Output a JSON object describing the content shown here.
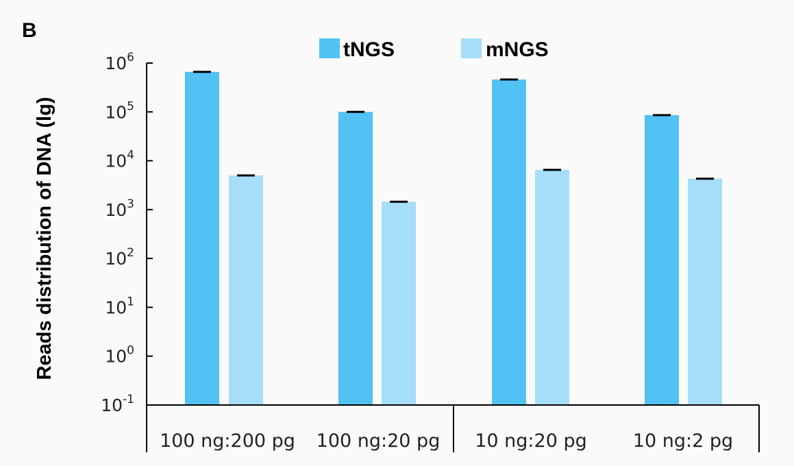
{
  "panel_label": "B",
  "colors": {
    "tNGS": "#52c2f5",
    "mNGS": "#a6ddf8",
    "axis": "#000000",
    "background": "#fafafa"
  },
  "chart_data": {
    "type": "bar",
    "scale": "log10",
    "ylabel": "Reads distribution of DNA (lg)",
    "xlabel": "",
    "ylim": [
      0.1,
      1000000
    ],
    "y_ticks": [
      {
        "base": "10",
        "exp": "6",
        "value": 1000000
      },
      {
        "base": "10",
        "exp": "5",
        "value": 100000
      },
      {
        "base": "10",
        "exp": "4",
        "value": 10000
      },
      {
        "base": "10",
        "exp": "3",
        "value": 1000
      },
      {
        "base": "10",
        "exp": "2",
        "value": 100
      },
      {
        "base": "10",
        "exp": "1",
        "value": 10
      },
      {
        "base": "10",
        "exp": "0",
        "value": 1
      },
      {
        "base": "10",
        "exp": "-1",
        "value": 0.1
      }
    ],
    "categories": [
      "100 ng:200 pg",
      "100 ng:20 pg",
      "10 ng:20 pg",
      "10 ng:2 pg"
    ],
    "category_groups": [
      [
        "100 ng:200 pg",
        "100 ng:20 pg"
      ],
      [
        "10 ng:20 pg",
        "10 ng:2 pg"
      ]
    ],
    "legend": {
      "placement": "top-center",
      "entries": [
        "tNGS",
        "mNGS"
      ]
    },
    "series": [
      {
        "name": "tNGS",
        "values": [
          660000,
          100000,
          460000,
          86000
        ]
      },
      {
        "name": "mNGS",
        "values": [
          5000,
          1450,
          6500,
          4300
        ]
      }
    ],
    "error_bars": "small",
    "grid": false
  }
}
